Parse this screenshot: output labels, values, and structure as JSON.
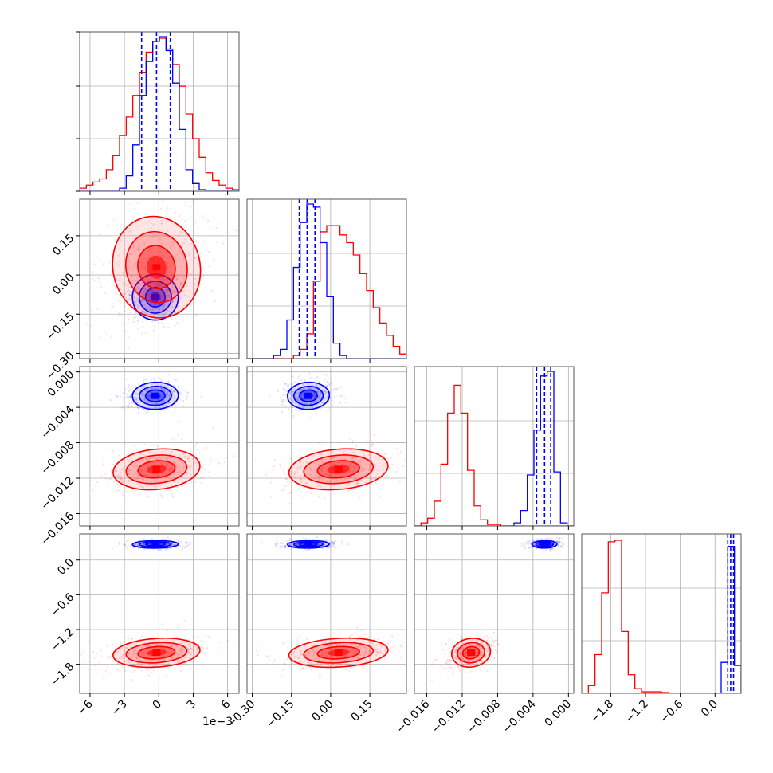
{
  "chart_data": {
    "type": "corner",
    "grid": true,
    "colors": {
      "series_a": "#0000ff",
      "series_b": "#ff0000",
      "grid": "#b0b0b0",
      "frame": "#555555"
    },
    "series": [
      {
        "color": "#0000ff"
      },
      {
        "color": "#ff0000"
      }
    ],
    "parameters": [
      {
        "range": [
          -6.9,
          7.0
        ],
        "ticks": [
          -6,
          -3,
          0,
          3,
          6
        ],
        "tick_labels": [
          "−6",
          "−3",
          "0",
          "3",
          "6"
        ],
        "offset_label": "1e−3",
        "blue_quantiles": [
          -1.5,
          -0.2,
          1.0
        ],
        "blue_hist": [
          0,
          0,
          0,
          0,
          0,
          0,
          0.02,
          0.1,
          0.3,
          0.62,
          0.84,
          0.97,
          1.0,
          0.91,
          0.7,
          0.4,
          0.14,
          0.05,
          0.01,
          0,
          0,
          0,
          0,
          0
        ],
        "red_hist": [
          0.02,
          0.04,
          0.06,
          0.08,
          0.14,
          0.23,
          0.36,
          0.48,
          0.62,
          0.77,
          0.9,
          0.97,
          0.99,
          0.92,
          0.82,
          0.68,
          0.5,
          0.34,
          0.22,
          0.12,
          0.07,
          0.04,
          0.02,
          0.01
        ]
      },
      {
        "range": [
          -0.32,
          0.29
        ],
        "ticks": [
          -0.3,
          -0.15,
          0.0,
          0.15
        ],
        "tick_labels": [
          "−0.30",
          "−0.15",
          "0.00",
          "0.15"
        ],
        "blue_quantiles": [
          -0.12,
          -0.09,
          -0.06
        ],
        "blue_hist": [
          0,
          0,
          0,
          0,
          0.02,
          0.06,
          0.25,
          0.59,
          0.88,
          1.0,
          0.98,
          0.75,
          0.4,
          0.1,
          0.02,
          0,
          0,
          0,
          0,
          0,
          0,
          0,
          0,
          0
        ],
        "red_hist": [
          0,
          0,
          0,
          0,
          0,
          0,
          0,
          0.02,
          0.06,
          0.16,
          0.5,
          0.82,
          0.86,
          0.86,
          0.8,
          0.75,
          0.67,
          0.55,
          0.44,
          0.33,
          0.23,
          0.15,
          0.08,
          0.03
        ]
      },
      {
        "range": [
          -0.0174,
          0.0006
        ],
        "ticks": [
          -0.016,
          -0.012,
          -0.008,
          -0.004,
          0.0
        ],
        "tick_labels": [
          "−0.016",
          "−0.012",
          "−0.008",
          "−0.004",
          "0.000"
        ],
        "blue_quantiles": [
          -0.0036,
          -0.0027,
          -0.002
        ],
        "blue_hist": [
          0,
          0,
          0,
          0,
          0,
          0,
          0,
          0,
          0,
          0,
          0,
          0,
          0,
          0,
          0,
          0.02,
          0.1,
          0.33,
          0.62,
          0.97,
          1.0,
          0.35,
          0.02,
          0
        ],
        "red_hist": [
          0,
          0.02,
          0.05,
          0.16,
          0.4,
          0.73,
          0.91,
          0.73,
          0.36,
          0.13,
          0.04,
          0.01,
          0.01,
          0,
          0,
          0,
          0,
          0,
          0,
          0,
          0,
          0,
          0,
          0
        ]
      },
      {
        "range": [
          -2.3,
          0.45
        ],
        "ticks": [
          -1.8,
          -1.2,
          -0.6,
          0.0
        ],
        "tick_labels": [
          "−1.8",
          "−1.2",
          "−0.6",
          "0.0"
        ],
        "blue_quantiles": [
          0.22,
          0.27,
          0.32
        ],
        "blue_hist": [
          0,
          0,
          0,
          0,
          0,
          0,
          0,
          0,
          0,
          0,
          0,
          0,
          0,
          0,
          0,
          0,
          0,
          0,
          0,
          0,
          0,
          0.2,
          0.95,
          0.18
        ],
        "red_hist": [
          0,
          0.05,
          0.25,
          0.65,
          0.98,
          0.99,
          0.4,
          0.12,
          0.03,
          0.01,
          0.01,
          0.01,
          0.005,
          0,
          0,
          0,
          0,
          0,
          0,
          0,
          0,
          0,
          0,
          0
        ]
      }
    ],
    "clusters": [
      {
        "color": "#0000ff",
        "mean": [
          -0.3,
          -0.085,
          -0.0027,
          0.27
        ],
        "sd": [
          1.0,
          0.04,
          0.0007,
          0.03
        ]
      },
      {
        "color": "#ff0000",
        "mean": [
          -0.2,
          0.03,
          -0.011,
          -1.6
        ],
        "sd": [
          1.9,
          0.095,
          0.0011,
          0.12
        ]
      }
    ]
  }
}
